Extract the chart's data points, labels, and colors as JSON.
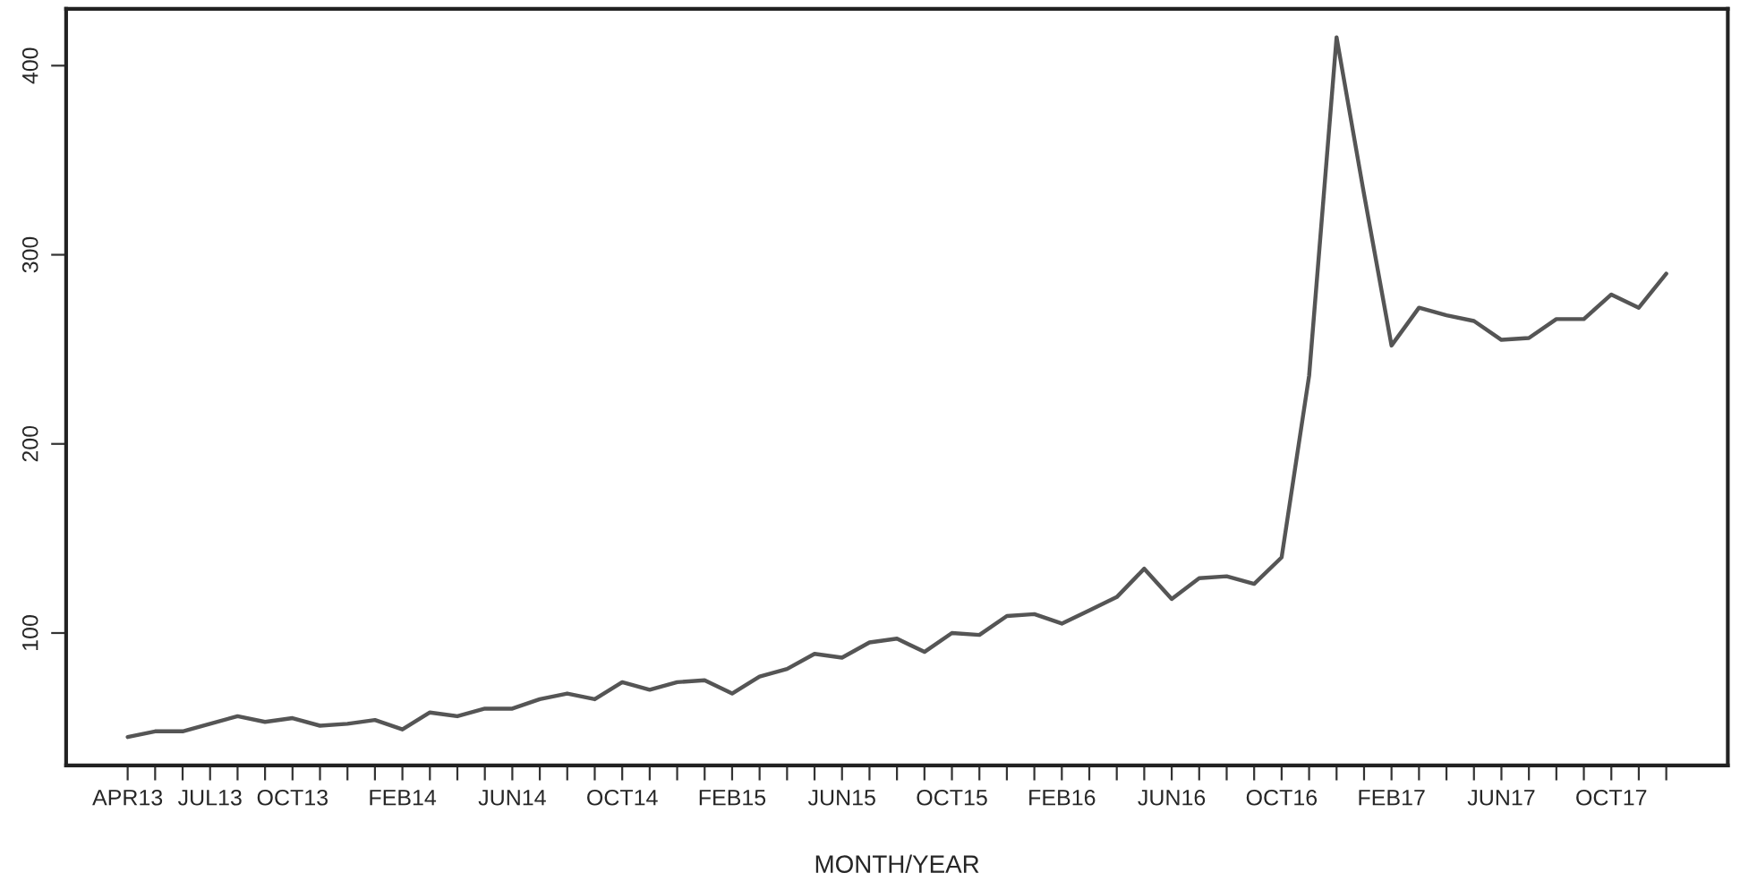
{
  "chart_data": {
    "type": "line",
    "xlabel": "MONTH/YEAR",
    "categories": [
      "APR13",
      null,
      null,
      "JUL13",
      null,
      null,
      "OCT13",
      null,
      null,
      null,
      "FEB14",
      null,
      null,
      null,
      "JUN14",
      null,
      null,
      null,
      "OCT14",
      null,
      null,
      null,
      "FEB15",
      null,
      null,
      null,
      "JUN15",
      null,
      null,
      null,
      "OCT15",
      null,
      null,
      null,
      "FEB16",
      null,
      null,
      null,
      "JUN16",
      null,
      null,
      null,
      "OCT16",
      null,
      null,
      null,
      "FEB17",
      null,
      null,
      null,
      "JUN17",
      null,
      null,
      null,
      "OCT17",
      null,
      null
    ],
    "series": [
      {
        "color": "#555555",
        "values": [
          45,
          48,
          48,
          52,
          56,
          53,
          55,
          51,
          52,
          54,
          49,
          58,
          56,
          60,
          60,
          65,
          68,
          65,
          74,
          70,
          74,
          75,
          68,
          77,
          81,
          89,
          87,
          95,
          97,
          90,
          100,
          99,
          109,
          110,
          105,
          112,
          119,
          134,
          118,
          129,
          130,
          126,
          140,
          236,
          415,
          332,
          252,
          272,
          268,
          265,
          255,
          256,
          266,
          266,
          279,
          272,
          290
        ]
      }
    ],
    "ylim": [
      30,
      430
    ],
    "yticks": [
      100,
      200,
      300,
      400
    ],
    "grid": false,
    "marker": "none",
    "line_style": "solid"
  }
}
